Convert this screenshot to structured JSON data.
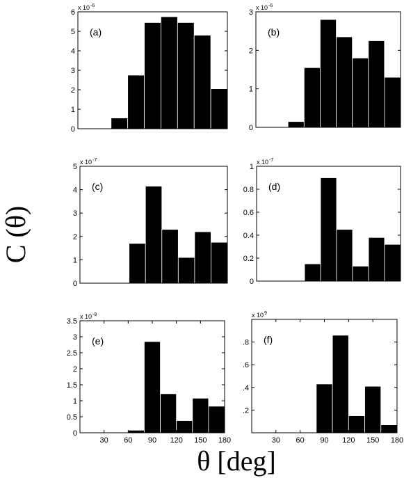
{
  "figure": {
    "ylabel": "C (θ)",
    "xlabel": "θ [deg]"
  },
  "chart_data": [
    {
      "type": "bar",
      "panel_label": "(a)",
      "bin_edges": [
        0,
        20,
        40,
        60,
        80,
        100,
        120,
        140,
        160,
        180
      ],
      "values": [
        0,
        0,
        0.55,
        2.75,
        5.45,
        5.75,
        5.45,
        4.8,
        2.05
      ],
      "scale": {
        "base": "x 10",
        "power": "-6"
      },
      "ylim": [
        0,
        6
      ],
      "yticks": [
        "0",
        "1",
        "2",
        "3",
        "4",
        "5",
        "6"
      ],
      "xlim": [
        0,
        180
      ],
      "xticks": []
    },
    {
      "type": "bar",
      "panel_label": "(b)",
      "bin_edges": [
        0,
        20,
        40,
        60,
        80,
        100,
        120,
        140,
        160,
        180
      ],
      "values": [
        0,
        0,
        0.15,
        1.55,
        2.8,
        2.35,
        1.8,
        2.25,
        1.3
      ],
      "scale": {
        "base": "x 10",
        "power": "-6"
      },
      "ylim": [
        0,
        3
      ],
      "yticks": [
        "0",
        "1",
        "2",
        "3"
      ],
      "xlim": [
        0,
        180
      ],
      "xticks": []
    },
    {
      "type": "bar",
      "panel_label": "(c)",
      "bin_edges": [
        0,
        20,
        40,
        60,
        80,
        100,
        120,
        140,
        160,
        180
      ],
      "values": [
        0,
        0,
        0,
        1.7,
        4.15,
        2.3,
        1.1,
        2.2,
        1.75
      ],
      "scale": {
        "base": "x 10",
        "power": "-7"
      },
      "ylim": [
        0,
        5
      ],
      "yticks": [
        "0",
        "1",
        "2",
        "3",
        "4",
        "5"
      ],
      "xlim": [
        0,
        180
      ],
      "xticks": []
    },
    {
      "type": "bar",
      "panel_label": "(d)",
      "bin_edges": [
        0,
        20,
        40,
        60,
        80,
        100,
        120,
        140,
        160,
        180
      ],
      "values": [
        0,
        0,
        0,
        0.15,
        0.9,
        0.45,
        0.13,
        0.38,
        0.32
      ],
      "scale": {
        "base": "x 10",
        "power": "-7"
      },
      "ylim": [
        0,
        1
      ],
      "yticks": [
        "0",
        "0.2",
        "0.4",
        "0.6",
        "0.8",
        "1"
      ],
      "xlim": [
        0,
        180
      ],
      "xticks": []
    },
    {
      "type": "bar",
      "panel_label": "(e)",
      "bin_edges": [
        0,
        20,
        40,
        60,
        80,
        100,
        120,
        140,
        160,
        180
      ],
      "values": [
        0,
        0,
        0,
        0.08,
        2.85,
        1.22,
        0.38,
        1.08,
        0.83
      ],
      "scale": {
        "base": "x 10",
        "power": "-8"
      },
      "ylim": [
        0,
        3.5
      ],
      "yticks": [
        "0",
        "0.5",
        "1",
        "1.5",
        "2",
        "2.5",
        "3",
        "3.5"
      ],
      "xlim": [
        0,
        180
      ],
      "xticks": [
        "30",
        "60",
        "90",
        "120",
        "150",
        "180"
      ]
    },
    {
      "type": "bar",
      "panel_label": "(f)",
      "bin_edges": [
        0,
        20,
        40,
        60,
        80,
        100,
        120,
        140,
        160,
        180
      ],
      "values": [
        0,
        0,
        0,
        0,
        0.43,
        0.86,
        0.15,
        0.41,
        0.07
      ],
      "scale": {
        "base": "x 10",
        "power": "9"
      },
      "ylim": [
        0,
        1
      ],
      "yticks": [
        "",
        ".2",
        ".4",
        ".6",
        ".8",
        ""
      ],
      "xlim": [
        0,
        180
      ],
      "xticks": [
        "30",
        "60",
        "90",
        "120",
        "150",
        "180"
      ]
    }
  ]
}
